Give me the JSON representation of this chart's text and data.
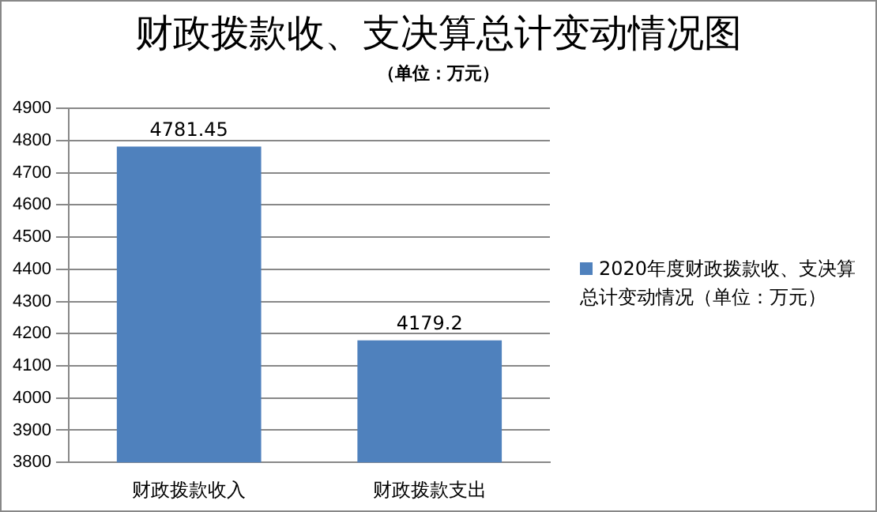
{
  "chart_data": {
    "type": "bar",
    "title": "财政拨款收、支决算总计变动情况图",
    "subtitle": "（单位：万元）",
    "categories": [
      "财政拨款收入",
      "财政拨款支出"
    ],
    "series": [
      {
        "name": "2020年度财政拨款收、支决算总计变动情况（单位：万元）",
        "color": "#4f81bd",
        "values": [
          4781.45,
          4179.2
        ]
      }
    ],
    "ylim": [
      3800,
      4900
    ],
    "yticks": [
      3800,
      3900,
      4000,
      4100,
      4200,
      4300,
      4400,
      4500,
      4600,
      4700,
      4800,
      4900
    ],
    "grid": "y",
    "legend": "right",
    "data_labels": true
  }
}
